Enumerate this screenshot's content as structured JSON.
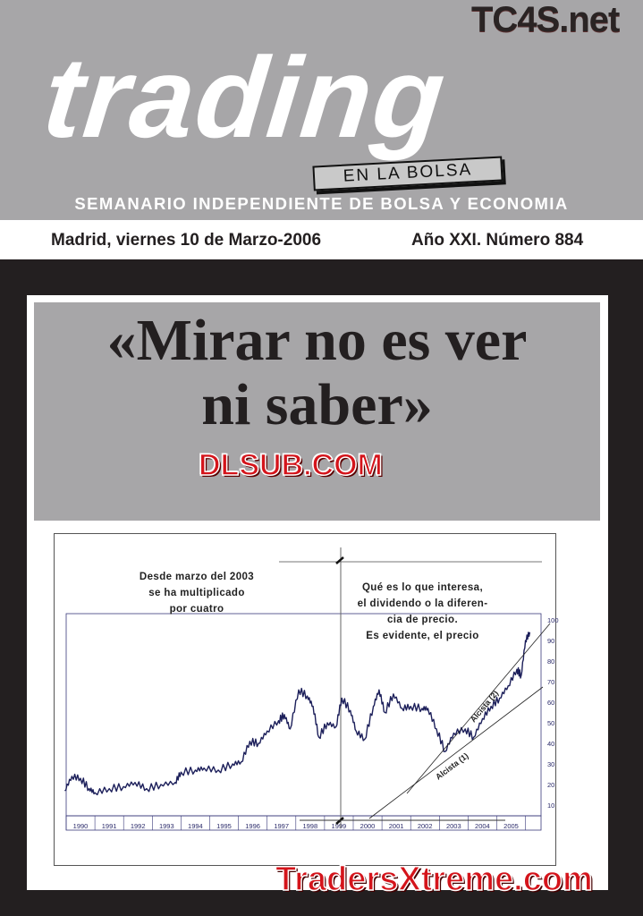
{
  "masthead": {
    "title": "trading",
    "badge": "EN LA BOLSA",
    "subtitle": "SEMANARIO INDEPENDIENTE DE BOLSA Y ECONOMIA",
    "date": "Madrid, viernes 10 de Marzo-2006",
    "issue": "Año XXI. Número 884",
    "watermark_top": "TC4S.net"
  },
  "headline": {
    "line1": "«Mirar no es ver",
    "line2": "ni saber»"
  },
  "watermarks": {
    "middle": "DLSUB.COM",
    "bottom": "TradersXtreme.com"
  },
  "colors": {
    "header_gray": "#a7a6a8",
    "background": "#231f20",
    "series": "#1c1f5a",
    "watermark_red": "#d4141b"
  },
  "chart_data": {
    "type": "line",
    "x_tick_labels": [
      "1990",
      "1991",
      "1992",
      "1993",
      "1994",
      "1995",
      "1996",
      "1997",
      "1998",
      "1999",
      "2000",
      "2001",
      "2002",
      "2003",
      "2004",
      "2005"
    ],
    "y_ticks": [
      10,
      20,
      30,
      40,
      50,
      60,
      70,
      80,
      90,
      100
    ],
    "ylim": [
      10,
      100
    ],
    "xlim": [
      1990,
      2006.5
    ],
    "series": [
      {
        "x": [
          1989.95,
          1990.2,
          1990.5,
          1990.8,
          1991.0,
          1991.5,
          1992.0,
          1992.4,
          1992.8,
          1993.3,
          1993.8,
          1994.0,
          1994.5,
          1994.8,
          1995.3,
          1995.8,
          1996.1,
          1996.4,
          1996.7,
          1997.0,
          1997.4,
          1997.6,
          1997.8,
          1998.1,
          1998.4,
          1998.6,
          1998.8,
          1999.1,
          1999.4,
          1999.6,
          1999.9,
          2000.1,
          2000.4,
          2000.7,
          2000.9,
          2001.1,
          2001.4,
          2001.7,
          2002.0,
          2002.4,
          2002.6,
          2002.9,
          2003.2,
          2003.5,
          2003.9,
          2004.2,
          2004.5,
          2004.8,
          2005.1,
          2005.4,
          2005.7,
          2005.85,
          2006.0,
          2006.15
        ],
        "y": [
          17,
          24,
          23,
          18,
          16,
          18,
          19,
          21,
          18,
          20,
          21,
          26,
          27,
          28,
          27,
          30,
          31,
          41,
          40,
          46,
          51,
          54,
          47,
          66,
          63,
          58,
          43,
          50,
          48,
          62,
          56,
          46,
          42,
          58,
          66,
          55,
          64,
          57,
          58,
          57,
          57,
          47,
          36,
          45,
          47,
          43,
          52,
          58,
          62,
          68,
          76,
          73,
          90,
          94
        ]
      }
    ],
    "trendlines": [
      "Alcista (1)",
      "Alcista (2)"
    ],
    "annotations": [
      "Desde marzo del 2003 se ha multiplicado por cuatro",
      "Qué es lo que interesa, el dividendo o la diferencia de precio. Es evidente, el precio"
    ]
  },
  "chart_notes": {
    "left_lines": [
      "Desde marzo del 2003",
      "se ha multiplicado",
      "por cuatro"
    ],
    "right_lines": [
      "Qué es lo que interesa,",
      "el dividendo o la diferen-",
      "cia de precio.",
      "Es evidente, el precio"
    ],
    "trend1": "Alcista (1)",
    "trend2": "Alcista (2)"
  }
}
